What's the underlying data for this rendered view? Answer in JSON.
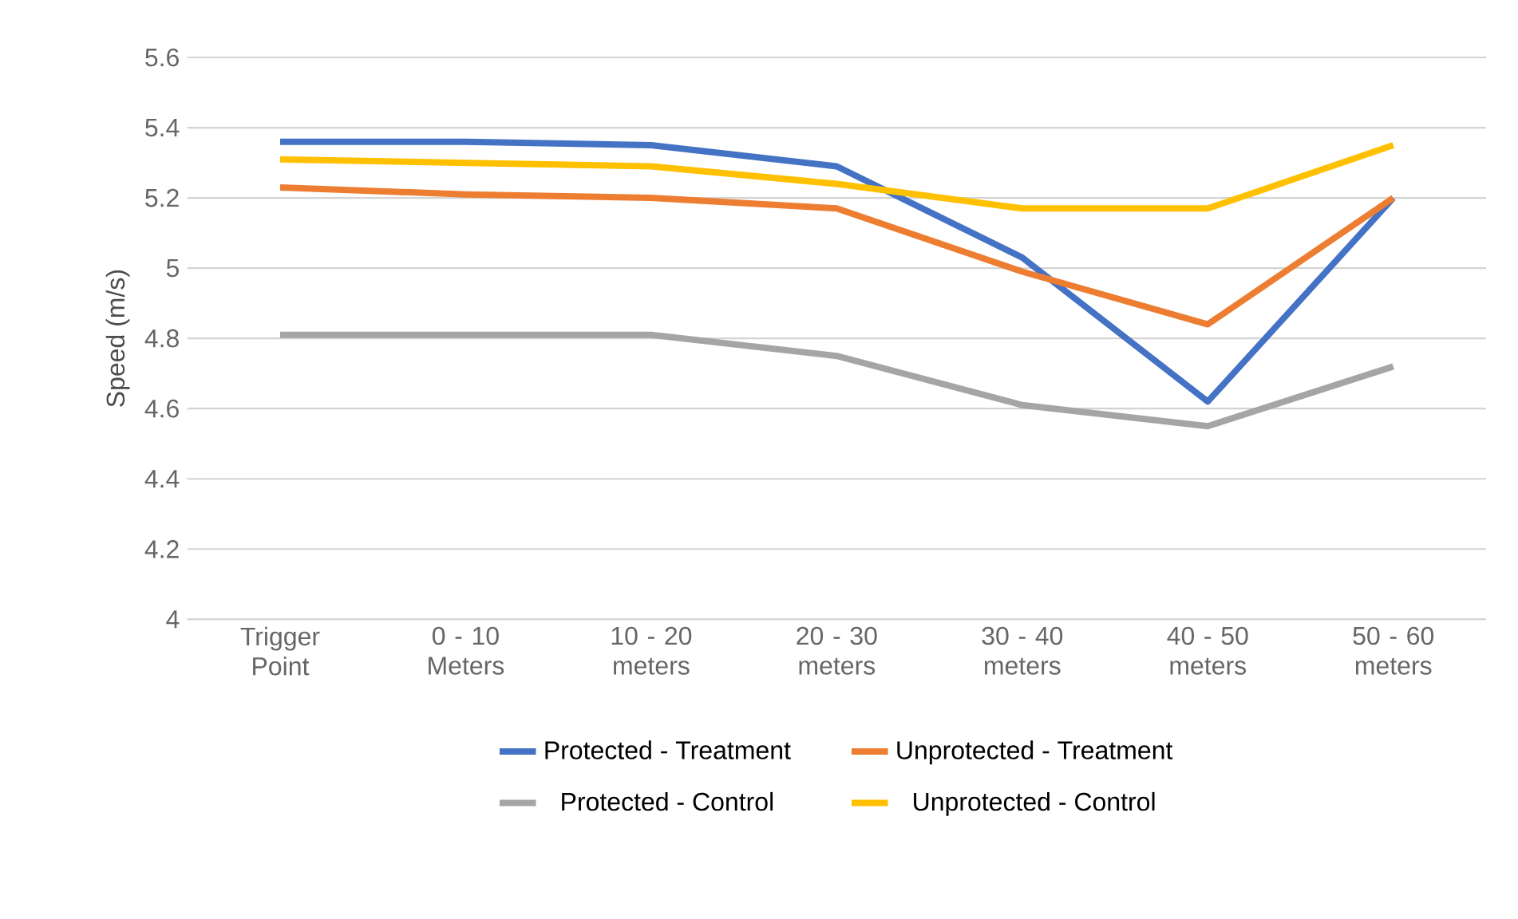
{
  "chart_data": {
    "type": "line",
    "ylabel": "Speed (m/s)",
    "categories": [
      "Trigger Point",
      "0 - 10 Meters",
      "10 - 20 meters",
      "20 - 30 meters",
      "30 - 40 meters",
      "40 - 50 meters",
      "50 - 60 meters"
    ],
    "series": [
      {
        "name": "Protected - Treatment",
        "color": "#4472c4",
        "values": [
          5.36,
          5.36,
          5.35,
          5.29,
          5.03,
          4.62,
          5.2
        ]
      },
      {
        "name": "Unprotected - Treatment",
        "color": "#ed7d31",
        "values": [
          5.23,
          5.21,
          5.2,
          5.17,
          4.99,
          4.84,
          5.2
        ]
      },
      {
        "name": "Protected - Control",
        "color": "#a5a5a5",
        "values": [
          4.81,
          4.81,
          4.81,
          4.75,
          4.61,
          4.55,
          4.72
        ]
      },
      {
        "name": "Unprotected - Control",
        "color": "#ffc000",
        "values": [
          5.31,
          5.3,
          5.29,
          5.24,
          5.17,
          5.17,
          5.35
        ]
      }
    ],
    "ylim": [
      4,
      5.6
    ],
    "yticks": [
      4,
      4.2,
      4.4,
      4.6,
      4.8,
      5,
      5.2,
      5.4,
      5.6
    ],
    "grid": "y",
    "legend": "bottom",
    "marker": "none",
    "line_style": "solid"
  }
}
